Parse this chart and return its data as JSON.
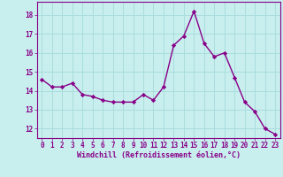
{
  "x": [
    0,
    1,
    2,
    3,
    4,
    5,
    6,
    7,
    8,
    9,
    10,
    11,
    12,
    13,
    14,
    15,
    16,
    17,
    18,
    19,
    20,
    21,
    22,
    23
  ],
  "y": [
    14.6,
    14.2,
    14.2,
    14.4,
    13.8,
    13.7,
    13.5,
    13.4,
    13.4,
    13.4,
    13.8,
    13.5,
    14.2,
    16.4,
    16.9,
    18.2,
    16.5,
    15.8,
    16.0,
    14.7,
    13.4,
    12.9,
    12.0,
    11.7
  ],
  "line_color": "#880088",
  "marker": "D",
  "marker_size": 2.2,
  "line_width": 1.0,
  "bg_color": "#c8eeee",
  "grid_color": "#aadddd",
  "xlabel": "Windchill (Refroidissement éolien,°C)",
  "xlabel_color": "#880088",
  "tick_color": "#880088",
  "spine_color": "#880088",
  "ylim": [
    11.5,
    18.7
  ],
  "xlim": [
    -0.5,
    23.5
  ],
  "yticks": [
    12,
    13,
    14,
    15,
    16,
    17,
    18
  ],
  "xticks": [
    0,
    1,
    2,
    3,
    4,
    5,
    6,
    7,
    8,
    9,
    10,
    11,
    12,
    13,
    14,
    15,
    16,
    17,
    18,
    19,
    20,
    21,
    22,
    23
  ],
  "tick_fontsize": 5.5,
  "xlabel_fontsize": 6.0,
  "ylabel_fontsize": 6.0
}
